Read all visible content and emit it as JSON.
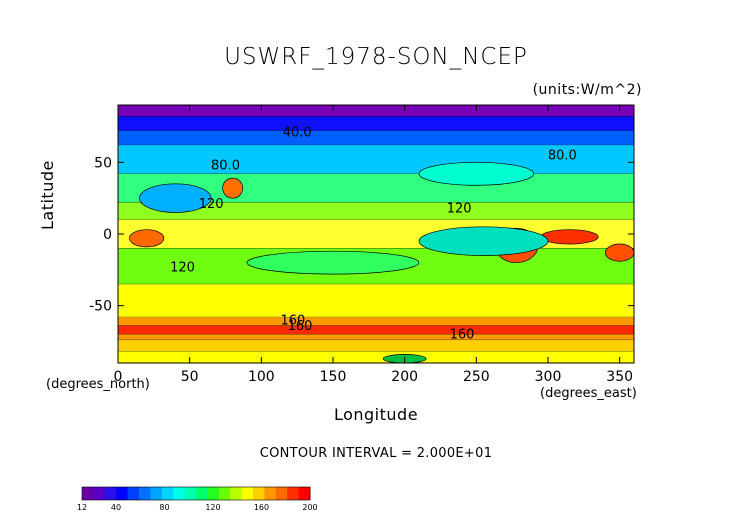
{
  "chart_data": {
    "type": "heatmap",
    "title": "USWRF_1978-SON_NCEP",
    "units": "(units:W/m^2)",
    "xlabel": "Longitude",
    "ylabel": "Latitude",
    "x_unit_note": "(degrees_north)",
    "y_unit_note": "(degrees_east)",
    "xlim": [
      0,
      360
    ],
    "ylim": [
      -90,
      90
    ],
    "x_ticks": [
      0,
      50,
      100,
      150,
      200,
      250,
      300,
      350
    ],
    "y_ticks": [
      50,
      0,
      -50
    ],
    "contour_interval": "CONTOUR INTERVAL = 2.000E+01",
    "contour_labels": [
      {
        "text": "40.0",
        "lon": 125,
        "lat": 68
      },
      {
        "text": "80.0",
        "lon": 75,
        "lat": 45
      },
      {
        "text": "80.0",
        "lon": 310,
        "lat": 52
      },
      {
        "text": "120",
        "lon": 65,
        "lat": 18
      },
      {
        "text": "120",
        "lon": 238,
        "lat": 15
      },
      {
        "text": "120",
        "lon": 45,
        "lat": -26
      },
      {
        "text": "160",
        "lon": 122,
        "lat": -63
      },
      {
        "text": "160",
        "lon": 127,
        "lat": -67
      },
      {
        "text": "160",
        "lon": 240,
        "lat": -73
      }
    ],
    "colorbar": {
      "min": 12,
      "max": 200,
      "tick_labels": [
        "12",
        "40",
        "80",
        "120",
        "160",
        "200"
      ],
      "tick_values": [
        12,
        40,
        80,
        120,
        160,
        200
      ],
      "colors": [
        "#6a00a8",
        "#5800c8",
        "#2a10e8",
        "#0000ff",
        "#0040ff",
        "#0070ff",
        "#00a4ff",
        "#00d4ff",
        "#00ffe8",
        "#00ffb0",
        "#00ff70",
        "#20ff20",
        "#70ff00",
        "#b8ff00",
        "#ffff00",
        "#ffd000",
        "#ff9800",
        "#ff6a00",
        "#ff3000",
        "#ff0000"
      ]
    },
    "bands": [
      {
        "lat_top": 90,
        "lat_bottom": 82,
        "color": "#7a00b8"
      },
      {
        "lat_top": 82,
        "lat_bottom": 72,
        "color": "#1010ff"
      },
      {
        "lat_top": 72,
        "lat_bottom": 62,
        "color": "#0060ff"
      },
      {
        "lat_top": 62,
        "lat_bottom": 42,
        "color": "#00c8ff"
      },
      {
        "lat_top": 42,
        "lat_bottom": 22,
        "color": "#30ff80"
      },
      {
        "lat_top": 22,
        "lat_bottom": 10,
        "color": "#90ff20"
      },
      {
        "lat_top": 10,
        "lat_bottom": -10,
        "color": "#ffff30"
      },
      {
        "lat_top": -10,
        "lat_bottom": -35,
        "color": "#70ff10"
      },
      {
        "lat_top": -35,
        "lat_bottom": -58,
        "color": "#ffff00"
      },
      {
        "lat_top": -58,
        "lat_bottom": -64,
        "color": "#ff9a00"
      },
      {
        "lat_top": -64,
        "lat_bottom": -70,
        "color": "#ff2a00"
      },
      {
        "lat_top": -70,
        "lat_bottom": -74,
        "color": "#ff9a00"
      },
      {
        "lat_top": -74,
        "lat_bottom": -82,
        "color": "#ffd000"
      },
      {
        "lat_top": -82,
        "lat_bottom": -90,
        "color": "#ffff00"
      }
    ],
    "patches": [
      {
        "lon": 20,
        "lat": -3,
        "rlon": 12,
        "rlat": 6,
        "color": "#ff6a00"
      },
      {
        "lon": 80,
        "lat": 32,
        "rlon": 7,
        "rlat": 7,
        "color": "#ff7000"
      },
      {
        "lon": 40,
        "lat": 25,
        "rlon": 25,
        "rlat": 10,
        "color": "#00b0ff"
      },
      {
        "lon": 278,
        "lat": -8,
        "rlon": 15,
        "rlat": 12,
        "color": "#ff5000"
      },
      {
        "lon": 315,
        "lat": -2,
        "rlon": 20,
        "rlat": 5,
        "color": "#ff3000"
      },
      {
        "lon": 350,
        "lat": -13,
        "rlon": 10,
        "rlat": 6,
        "color": "#ff5000"
      },
      {
        "lon": 255,
        "lat": -5,
        "rlon": 45,
        "rlat": 10,
        "color": "#00e0c0"
      },
      {
        "lon": 150,
        "lat": -20,
        "rlon": 60,
        "rlat": 8,
        "color": "#30ff60"
      },
      {
        "lon": 250,
        "lat": 42,
        "rlon": 40,
        "rlat": 8,
        "color": "#00ffd0"
      },
      {
        "lon": 200,
        "lat": -87,
        "rlon": 15,
        "rlat": 3,
        "color": "#00c040"
      }
    ]
  }
}
